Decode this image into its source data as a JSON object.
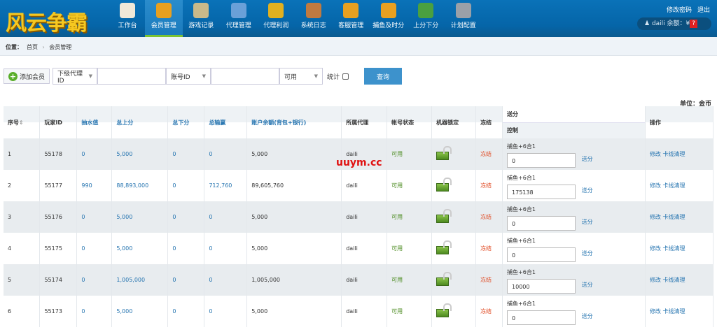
{
  "header": {
    "logo": "风云争霸",
    "home": "工作台",
    "nav": [
      {
        "label": "会员管理",
        "active": true,
        "color": "#e8a020"
      },
      {
        "label": "游戏记录",
        "color": "#c9b98a"
      },
      {
        "label": "代理管理",
        "color": "#6aa0d8"
      },
      {
        "label": "代理利润",
        "color": "#e0b020"
      },
      {
        "label": "系统日志",
        "color": "#c07a40"
      },
      {
        "label": "客服管理",
        "color": "#e8a020"
      },
      {
        "label": "捕鱼及时分",
        "color": "#e8a020"
      },
      {
        "label": "上分下分",
        "color": "#4aa040"
      },
      {
        "label": "计划配置",
        "color": "#9aa0a8"
      }
    ],
    "change_password": "修改密码",
    "logout": "退出",
    "user": "daili",
    "balance_label": "余额：¥",
    "balance_badge": "?"
  },
  "breadcrumb": {
    "label": "位置：",
    "home": "首页",
    "sep": "›",
    "current": "会员管理"
  },
  "toolbar": {
    "add": "添加会员",
    "filter1": "下级代理ID",
    "filter2": "账号ID",
    "status": "可用",
    "stats": "统计",
    "query": "查询"
  },
  "unit": "单位：金币",
  "table": {
    "headers": [
      "序号",
      "玩家ID",
      "抽水值",
      "总上分",
      "总下分",
      "总输赢",
      "账户余额(背包+银行)",
      "所属代理",
      "帐号状态",
      "机器锁定",
      "冻结",
      "送分",
      "操作"
    ],
    "sub_header": "控制",
    "sort_icon": "⇕",
    "rows": [
      {
        "no": "1",
        "id": "55178",
        "rake": "0",
        "up": "5,000",
        "down": "0",
        "win": "0",
        "bal": "5,000",
        "agent": "daili",
        "status": "可用",
        "freeze": "冻结",
        "game": "捕鱼+6合1",
        "send_val": "0",
        "send": "送分",
        "edit": "修改",
        "clear": "卡线清理"
      },
      {
        "no": "2",
        "id": "55177",
        "rake": "990",
        "up": "88,893,000",
        "down": "0",
        "win": "712,760",
        "bal": "89,605,760",
        "agent": "daili",
        "status": "可用",
        "freeze": "冻结",
        "game": "捕鱼+6合1",
        "send_val": "175138",
        "send": "送分",
        "edit": "修改",
        "clear": "卡线清理"
      },
      {
        "no": "3",
        "id": "55176",
        "rake": "0",
        "up": "5,000",
        "down": "0",
        "win": "0",
        "bal": "5,000",
        "agent": "daili",
        "status": "可用",
        "freeze": "冻结",
        "game": "捕鱼+6合1",
        "send_val": "0",
        "send": "送分",
        "edit": "修改",
        "clear": "卡线清理"
      },
      {
        "no": "4",
        "id": "55175",
        "rake": "0",
        "up": "5,000",
        "down": "0",
        "win": "0",
        "bal": "5,000",
        "agent": "daili",
        "status": "可用",
        "freeze": "冻结",
        "game": "捕鱼+6合1",
        "send_val": "0",
        "send": "送分",
        "edit": "修改",
        "clear": "卡线清理"
      },
      {
        "no": "5",
        "id": "55174",
        "rake": "0",
        "up": "1,005,000",
        "down": "0",
        "win": "0",
        "bal": "1,005,000",
        "agent": "daili",
        "status": "可用",
        "freeze": "冻结",
        "game": "捕鱼+6合1",
        "send_val": "10000",
        "send": "送分",
        "edit": "修改",
        "clear": "卡线清理"
      },
      {
        "no": "6",
        "id": "55173",
        "rake": "0",
        "up": "5,000",
        "down": "0",
        "win": "0",
        "bal": "5,000",
        "agent": "daili",
        "status": "可用",
        "freeze": "冻结",
        "game": "捕鱼+6合1",
        "send_val": "0",
        "send": "送分",
        "edit": "修改",
        "clear": "卡线清理"
      }
    ]
  },
  "watermark": "uuym.cc"
}
